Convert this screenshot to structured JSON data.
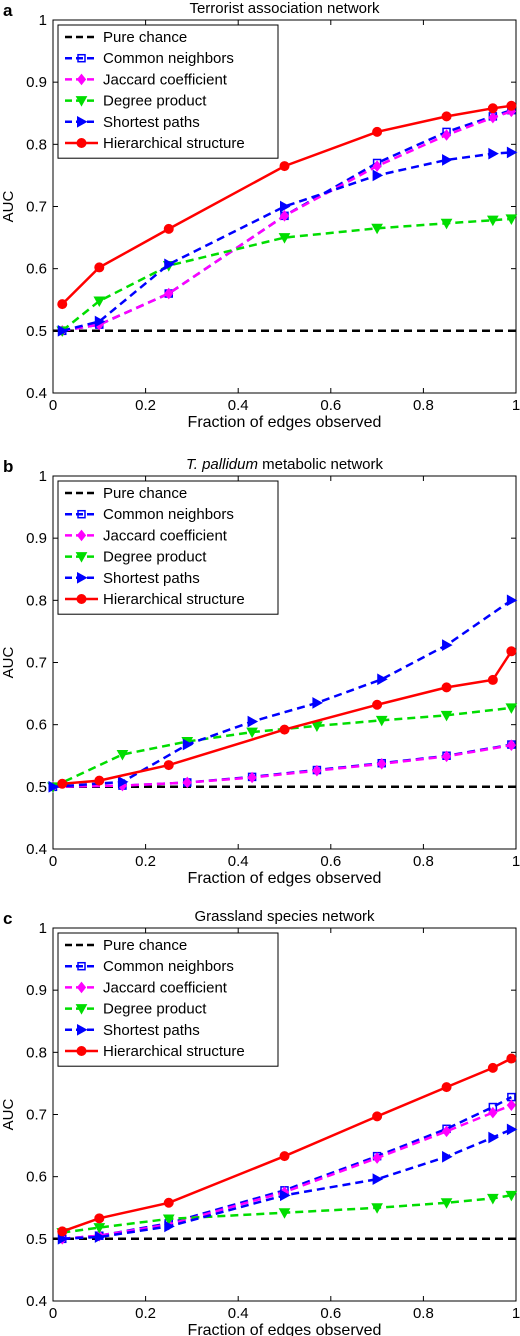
{
  "chart_data": [
    {
      "type": "line",
      "panel_letter": "a",
      "title": "Terrorist association network",
      "xlabel": "Fraction of edges observed",
      "ylabel": "AUC",
      "xlim": [
        0,
        1
      ],
      "ylim": [
        0.4,
        1
      ],
      "xticks": [
        0,
        0.2,
        0.4,
        0.6,
        0.8,
        1
      ],
      "xtick_labels": [
        "0",
        "0.2",
        "0.4",
        "0.6",
        "0.8",
        "1"
      ],
      "yticks": [
        0.4,
        0.5,
        0.6,
        0.7,
        0.8,
        0.9,
        1
      ],
      "ytick_labels": [
        "0.4",
        "0.5",
        "0.6",
        "0.7",
        "0.8",
        "0.9",
        "1"
      ],
      "grid": false,
      "legend_position": "top-left",
      "series": [
        {
          "name": "Pure chance",
          "color": "#000000",
          "dash": true,
          "marker": "none",
          "x": [
            0,
            1
          ],
          "y": [
            0.5,
            0.5
          ]
        },
        {
          "name": "Common neighbors",
          "color": "#0000ff",
          "dash": true,
          "marker": "square",
          "x": [
            0.02,
            0.1,
            0.25,
            0.5,
            0.7,
            0.85,
            0.95,
            0.99
          ],
          "y": [
            0.5,
            0.51,
            0.56,
            0.685,
            0.77,
            0.82,
            0.845,
            0.855
          ]
        },
        {
          "name": "Jaccard coefficient",
          "color": "#ff00ff",
          "dash": true,
          "marker": "diamond",
          "x": [
            0.02,
            0.1,
            0.25,
            0.5,
            0.7,
            0.85,
            0.95,
            0.99
          ],
          "y": [
            0.5,
            0.51,
            0.56,
            0.685,
            0.765,
            0.815,
            0.843,
            0.853
          ]
        },
        {
          "name": "Degree product",
          "color": "#00dd00",
          "dash": true,
          "marker": "triangle-down",
          "x": [
            0.02,
            0.1,
            0.25,
            0.5,
            0.7,
            0.85,
            0.95,
            0.99
          ],
          "y": [
            0.5,
            0.548,
            0.605,
            0.65,
            0.665,
            0.673,
            0.678,
            0.68
          ]
        },
        {
          "name": "Shortest paths",
          "color": "#0000ff",
          "dash": true,
          "marker": "triangle-right",
          "x": [
            0.02,
            0.1,
            0.25,
            0.5,
            0.7,
            0.85,
            0.95,
            0.99
          ],
          "y": [
            0.5,
            0.515,
            0.607,
            0.7,
            0.75,
            0.775,
            0.785,
            0.787
          ]
        },
        {
          "name": "Hierarchical structure",
          "color": "#ff0000",
          "dash": false,
          "marker": "circle",
          "x": [
            0.02,
            0.1,
            0.25,
            0.5,
            0.7,
            0.85,
            0.95,
            0.99
          ],
          "y": [
            0.543,
            0.602,
            0.664,
            0.765,
            0.82,
            0.845,
            0.858,
            0.862
          ]
        }
      ]
    },
    {
      "type": "line",
      "panel_letter": "b",
      "title": "T. pallidum metabolic network",
      "title_italic_part": "T. pallidum",
      "title_rest": " metabolic network",
      "xlabel": "Fraction of edges observed",
      "ylabel": "AUC",
      "xlim": [
        0,
        1
      ],
      "ylim": [
        0.4,
        1
      ],
      "xticks": [
        0,
        0.2,
        0.4,
        0.6,
        0.8,
        1
      ],
      "xtick_labels": [
        "0",
        "0.2",
        "0.4",
        "0.6",
        "0.8",
        "1"
      ],
      "yticks": [
        0.4,
        0.5,
        0.6,
        0.7,
        0.8,
        0.9,
        1
      ],
      "ytick_labels": [
        "0.4",
        "0.5",
        "0.6",
        "0.7",
        "0.8",
        "0.9",
        "1"
      ],
      "grid": false,
      "legend_position": "top-left",
      "series": [
        {
          "name": "Pure chance",
          "color": "#000000",
          "dash": true,
          "marker": "none",
          "x": [
            0,
            1
          ],
          "y": [
            0.5,
            0.5
          ]
        },
        {
          "name": "Common neighbors",
          "color": "#0000ff",
          "dash": true,
          "marker": "square",
          "x": [
            0,
            0.15,
            0.29,
            0.43,
            0.57,
            0.71,
            0.85,
            0.99
          ],
          "y": [
            0.5,
            0.502,
            0.507,
            0.516,
            0.527,
            0.538,
            0.55,
            0.568
          ]
        },
        {
          "name": "Jaccard coefficient",
          "color": "#ff00ff",
          "dash": true,
          "marker": "diamond",
          "x": [
            0,
            0.15,
            0.29,
            0.43,
            0.57,
            0.71,
            0.85,
            0.99
          ],
          "y": [
            0.5,
            0.502,
            0.507,
            0.515,
            0.526,
            0.537,
            0.549,
            0.567
          ]
        },
        {
          "name": "Degree product",
          "color": "#00dd00",
          "dash": true,
          "marker": "triangle-down",
          "x": [
            0,
            0.15,
            0.29,
            0.43,
            0.57,
            0.71,
            0.85,
            0.99
          ],
          "y": [
            0.5,
            0.552,
            0.573,
            0.588,
            0.598,
            0.607,
            0.615,
            0.627
          ]
        },
        {
          "name": "Shortest paths",
          "color": "#0000ff",
          "dash": true,
          "marker": "triangle-right",
          "x": [
            0,
            0.15,
            0.29,
            0.43,
            0.57,
            0.71,
            0.85,
            0.99
          ],
          "y": [
            0.5,
            0.508,
            0.568,
            0.605,
            0.635,
            0.673,
            0.728,
            0.8
          ]
        },
        {
          "name": "Hierarchical structure",
          "color": "#ff0000",
          "dash": false,
          "marker": "circle",
          "x": [
            0.02,
            0.1,
            0.25,
            0.5,
            0.7,
            0.85,
            0.95,
            0.99
          ],
          "y": [
            0.505,
            0.51,
            0.535,
            0.592,
            0.632,
            0.66,
            0.672,
            0.718
          ]
        }
      ]
    },
    {
      "type": "line",
      "panel_letter": "c",
      "title": "Grassland species network",
      "xlabel": "Fraction of edges observed",
      "ylabel": "AUC",
      "xlim": [
        0,
        1
      ],
      "ylim": [
        0.4,
        1
      ],
      "xticks": [
        0,
        0.2,
        0.4,
        0.6,
        0.8,
        1
      ],
      "xtick_labels": [
        "0",
        "0.2",
        "0.4",
        "0.6",
        "0.8",
        "1"
      ],
      "yticks": [
        0.4,
        0.5,
        0.6,
        0.7,
        0.8,
        0.9,
        1
      ],
      "ytick_labels": [
        "0.4",
        "0.5",
        "0.6",
        "0.7",
        "0.8",
        "0.9",
        "1"
      ],
      "grid": false,
      "legend_position": "top-left",
      "series": [
        {
          "name": "Pure chance",
          "color": "#000000",
          "dash": true,
          "marker": "none",
          "x": [
            0,
            1
          ],
          "y": [
            0.5,
            0.5
          ]
        },
        {
          "name": "Common neighbors",
          "color": "#0000ff",
          "dash": true,
          "marker": "square",
          "x": [
            0.02,
            0.1,
            0.25,
            0.5,
            0.7,
            0.85,
            0.95,
            0.99
          ],
          "y": [
            0.5,
            0.505,
            0.525,
            0.578,
            0.633,
            0.677,
            0.712,
            0.728
          ]
        },
        {
          "name": "Jaccard coefficient",
          "color": "#ff00ff",
          "dash": true,
          "marker": "diamond",
          "x": [
            0.02,
            0.1,
            0.25,
            0.5,
            0.7,
            0.85,
            0.95,
            0.99
          ],
          "y": [
            0.5,
            0.505,
            0.523,
            0.575,
            0.63,
            0.673,
            0.703,
            0.715
          ]
        },
        {
          "name": "Degree product",
          "color": "#00dd00",
          "dash": true,
          "marker": "triangle-down",
          "x": [
            0.02,
            0.1,
            0.25,
            0.5,
            0.7,
            0.85,
            0.95,
            0.99
          ],
          "y": [
            0.51,
            0.518,
            0.532,
            0.542,
            0.55,
            0.558,
            0.565,
            0.57
          ]
        },
        {
          "name": "Shortest paths",
          "color": "#0000ff",
          "dash": true,
          "marker": "triangle-right",
          "x": [
            0.02,
            0.1,
            0.25,
            0.5,
            0.7,
            0.85,
            0.95,
            0.99
          ],
          "y": [
            0.5,
            0.503,
            0.52,
            0.57,
            0.596,
            0.632,
            0.663,
            0.676
          ]
        },
        {
          "name": "Hierarchical structure",
          "color": "#ff0000",
          "dash": false,
          "marker": "circle",
          "x": [
            0.02,
            0.1,
            0.25,
            0.5,
            0.7,
            0.85,
            0.95,
            0.99
          ],
          "y": [
            0.512,
            0.533,
            0.558,
            0.633,
            0.697,
            0.744,
            0.775,
            0.79
          ]
        }
      ]
    }
  ]
}
